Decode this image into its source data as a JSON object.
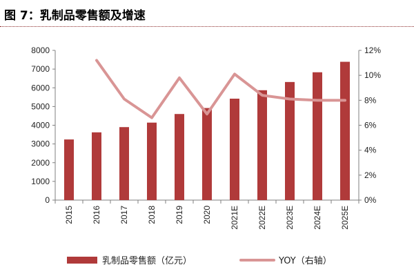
{
  "figure": {
    "title": "图 7：乳制品零售额及增速"
  },
  "colors": {
    "bar": "#b03a3a",
    "line": "#d99595",
    "axis": "#7f7f7f",
    "rule": "#8b2a2a"
  },
  "chart_data": {
    "type": "bar",
    "title": "乳制品零售额及增速",
    "categories": [
      "2015",
      "2016",
      "2017",
      "2018",
      "2019",
      "2020",
      "2021E",
      "2022E",
      "2023E",
      "2024E",
      "2025E"
    ],
    "series": [
      {
        "name": "乳制品零售额（亿元）",
        "type": "bar",
        "axis": "left",
        "values": [
          3240,
          3620,
          3900,
          4140,
          4600,
          4920,
          5420,
          5870,
          6310,
          6830,
          7390
        ]
      },
      {
        "name": "YOY（右轴）",
        "type": "line",
        "axis": "right",
        "values": [
          null,
          0.112,
          0.081,
          0.066,
          0.098,
          0.069,
          0.101,
          0.084,
          0.081,
          0.08,
          0.08
        ]
      }
    ],
    "y_left": {
      "min": 0,
      "max": 8000,
      "step": 1000,
      "ticks": [
        "0",
        "1000",
        "2000",
        "3000",
        "4000",
        "5000",
        "6000",
        "7000",
        "8000"
      ]
    },
    "y_right": {
      "min": 0,
      "max": 0.12,
      "step": 0.02,
      "ticks": [
        "0%",
        "2%",
        "4%",
        "6%",
        "8%",
        "10%",
        "12%"
      ]
    },
    "grid": false,
    "legend_position": "bottom"
  }
}
